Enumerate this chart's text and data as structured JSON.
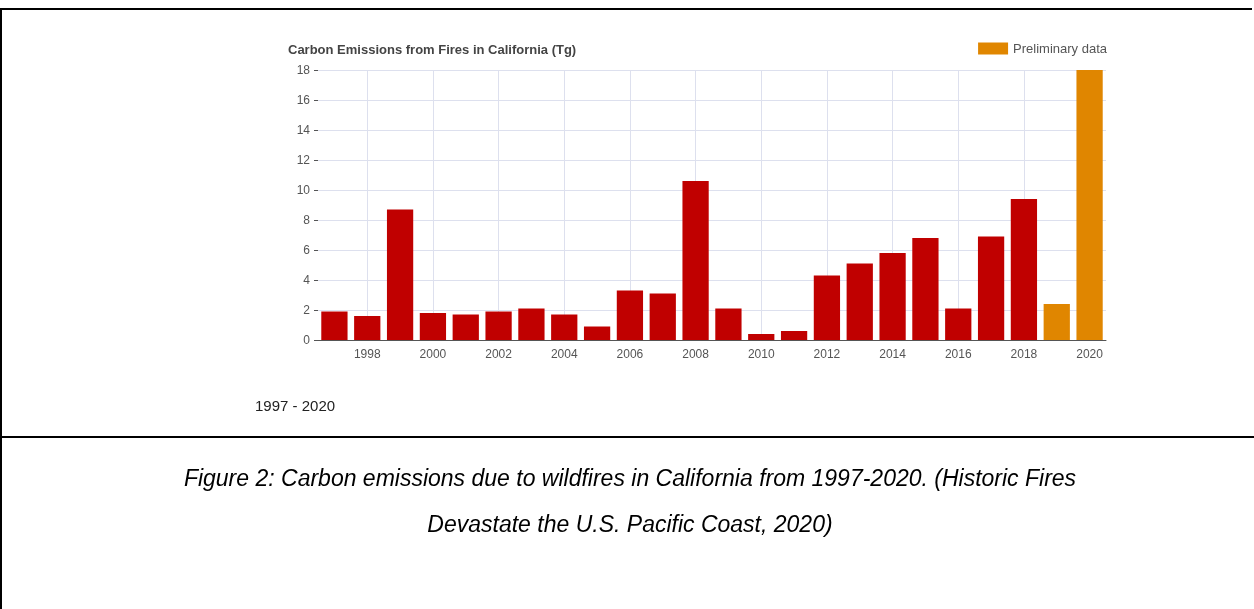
{
  "chart_data": {
    "type": "bar",
    "title": "Carbon Emissions from Fires in California (Tg)",
    "x": [
      1997,
      1998,
      1999,
      2000,
      2001,
      2002,
      2003,
      2004,
      2005,
      2006,
      2007,
      2008,
      2009,
      2010,
      2011,
      2012,
      2013,
      2014,
      2015,
      2016,
      2017,
      2018,
      2019,
      2020
    ],
    "series": [
      {
        "color": "#c00000",
        "values": [
          1.9,
          1.6,
          8.7,
          1.8,
          1.7,
          1.9,
          2.1,
          1.7,
          0.9,
          3.3,
          3.1,
          10.6,
          2.1,
          0.4,
          0.6,
          4.3,
          5.1,
          5.8,
          6.8,
          2.1,
          6.9,
          9.4,
          null,
          null
        ]
      },
      {
        "name": "Preliminary data",
        "color": "#e08600",
        "values": [
          null,
          null,
          null,
          null,
          null,
          null,
          null,
          null,
          null,
          null,
          null,
          null,
          null,
          null,
          null,
          null,
          null,
          null,
          null,
          null,
          null,
          null,
          2.4,
          18
        ]
      }
    ],
    "xlim": [
      1996.5,
      2020.5
    ],
    "xticks": [
      1998,
      2000,
      2002,
      2004,
      2006,
      2008,
      2010,
      2012,
      2014,
      2016,
      2018,
      2020
    ],
    "ylim": [
      0,
      18
    ],
    "yticks": [
      0,
      2,
      4,
      6,
      8,
      10,
      12,
      14,
      16,
      18
    ],
    "grid": true,
    "legend": "top right",
    "annotations": [
      "1997 - 2020",
      "Figure 2: Carbon emissions due to wildfires in California from 1997-2020. (Historic Fires Devastate the U.S. Pacific Coast, 2020)"
    ]
  }
}
